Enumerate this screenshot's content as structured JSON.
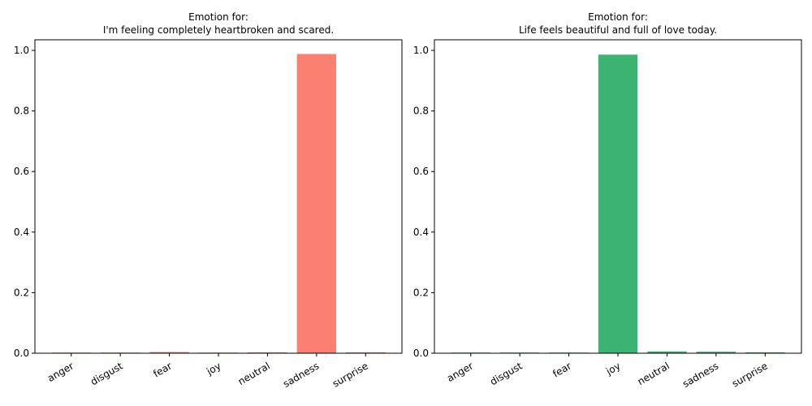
{
  "chart_data": [
    {
      "type": "bar",
      "title_line1": "Emotion for:",
      "title_line2": "I'm feeling completely heartbroken and scared.",
      "categories": [
        "anger",
        "disgust",
        "fear",
        "joy",
        "neutral",
        "sadness",
        "surprise"
      ],
      "values": [
        0.001,
        0.001,
        0.004,
        0.001,
        0.003,
        0.988,
        0.003
      ],
      "ylim": [
        0,
        1.035
      ],
      "yticks": [
        "0.0",
        "0.2",
        "0.4",
        "0.6",
        "0.8",
        "1.0"
      ],
      "color": "#fa8072",
      "grid": false
    },
    {
      "type": "bar",
      "title_line1": "Emotion for:",
      "title_line2": "Life feels beautiful and full of love today.",
      "categories": [
        "anger",
        "disgust",
        "fear",
        "joy",
        "neutral",
        "sadness",
        "surprise"
      ],
      "values": [
        0.0005,
        0.0005,
        0.0005,
        0.986,
        0.006,
        0.005,
        0.003
      ],
      "ylim": [
        0,
        1.035
      ],
      "yticks": [
        "0.0",
        "0.2",
        "0.4",
        "0.6",
        "0.8",
        "1.0"
      ],
      "color": "#3cb371",
      "grid": false
    }
  ]
}
